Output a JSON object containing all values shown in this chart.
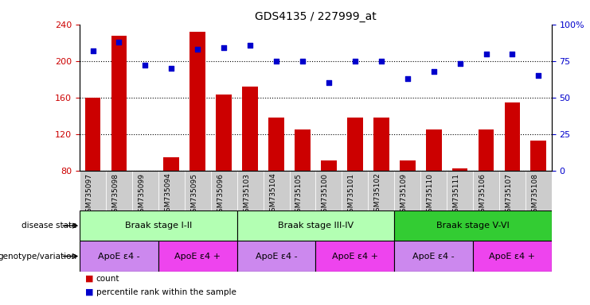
{
  "title": "GDS4135 / 227999_at",
  "samples": [
    "GSM735097",
    "GSM735098",
    "GSM735099",
    "GSM735094",
    "GSM735095",
    "GSM735096",
    "GSM735103",
    "GSM735104",
    "GSM735105",
    "GSM735100",
    "GSM735101",
    "GSM735102",
    "GSM735109",
    "GSM735110",
    "GSM735111",
    "GSM735106",
    "GSM735107",
    "GSM735108"
  ],
  "counts": [
    160,
    228,
    80,
    95,
    232,
    163,
    172,
    138,
    125,
    91,
    138,
    138,
    91,
    125,
    83,
    125,
    155,
    113
  ],
  "percentile_ranks": [
    82,
    88,
    72,
    70,
    83,
    84,
    86,
    75,
    75,
    60,
    75,
    75,
    63,
    68,
    73,
    80,
    80,
    65
  ],
  "bar_color": "#cc0000",
  "dot_color": "#0000cc",
  "ylim_left": [
    80,
    240
  ],
  "ylim_right": [
    0,
    100
  ],
  "yticks_left": [
    80,
    120,
    160,
    200,
    240
  ],
  "yticks_right": [
    0,
    25,
    50,
    75,
    100
  ],
  "ylabel_left_color": "#cc0000",
  "ylabel_right_color": "#0000cc",
  "disease_state_groups": [
    {
      "label": "Braak stage I-II",
      "start": 0,
      "end": 6,
      "color": "#b3ffb3"
    },
    {
      "label": "Braak stage III-IV",
      "start": 6,
      "end": 12,
      "color": "#b3ffb3"
    },
    {
      "label": "Braak stage V-VI",
      "start": 12,
      "end": 18,
      "color": "#33cc33"
    }
  ],
  "genotype_groups": [
    {
      "label": "ApoE ε4 -",
      "start": 0,
      "end": 3,
      "color": "#cc88ee"
    },
    {
      "label": "ApoE ε4 +",
      "start": 3,
      "end": 6,
      "color": "#ee44ee"
    },
    {
      "label": "ApoE ε4 -",
      "start": 6,
      "end": 9,
      "color": "#cc88ee"
    },
    {
      "label": "ApoE ε4 +",
      "start": 9,
      "end": 12,
      "color": "#ee44ee"
    },
    {
      "label": "ApoE ε4 -",
      "start": 12,
      "end": 15,
      "color": "#cc88ee"
    },
    {
      "label": "ApoE ε4 +",
      "start": 15,
      "end": 18,
      "color": "#ee44ee"
    }
  ],
  "legend_count_color": "#cc0000",
  "legend_dot_color": "#0000cc",
  "grid_color": "#000000",
  "xtick_bg_color": "#cccccc"
}
